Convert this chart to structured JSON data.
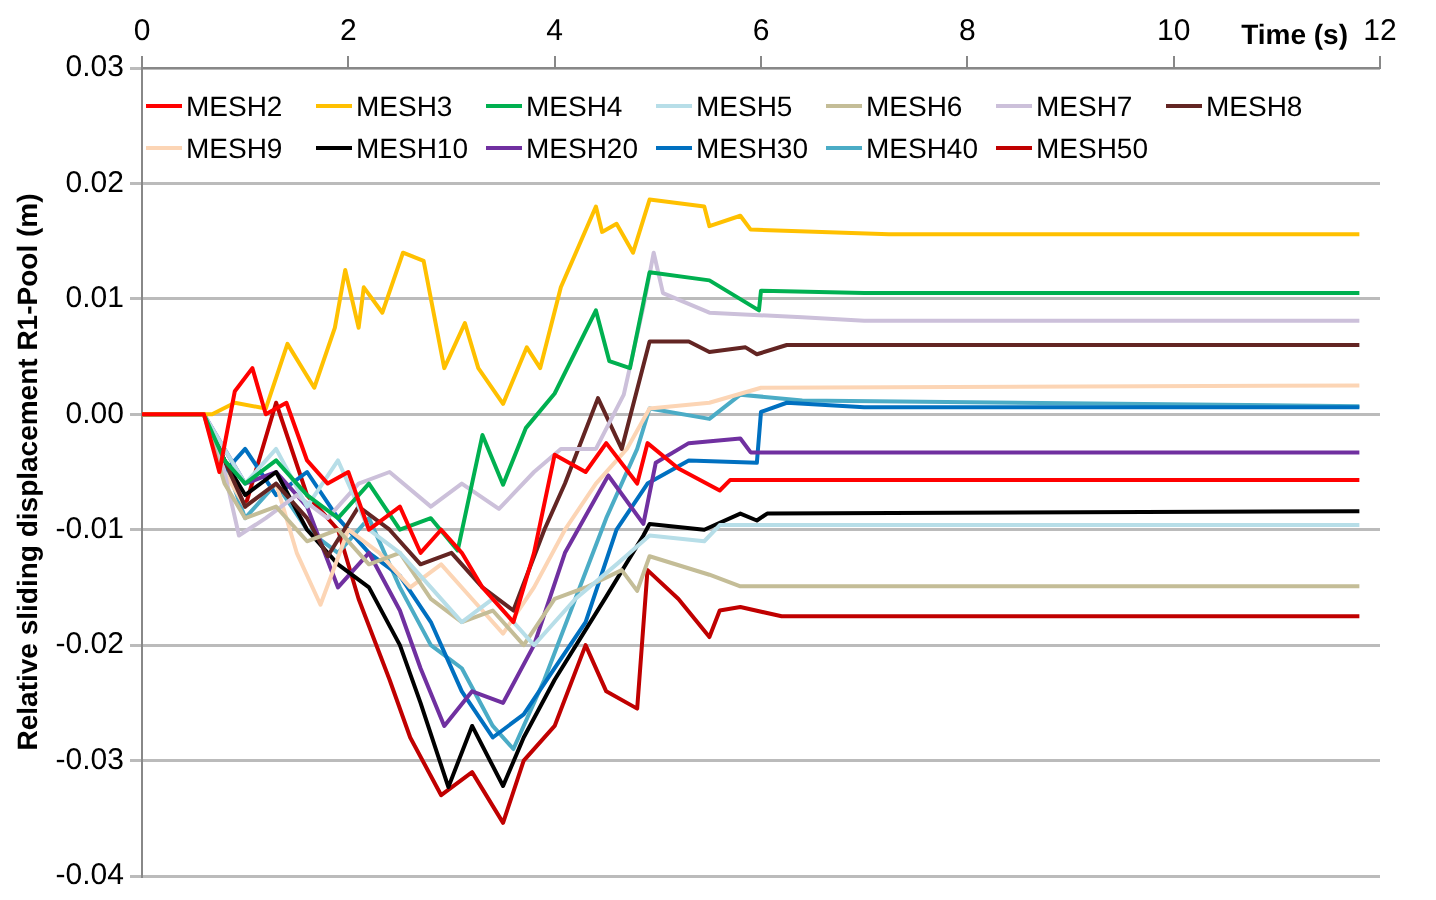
{
  "chart_data": {
    "type": "line",
    "xlabel": "Time (s)",
    "ylabel": "Relative sliding displacement R1-Pool (m)",
    "xlim": [
      0,
      12
    ],
    "xticks": [
      0,
      2,
      4,
      6,
      8,
      10,
      12
    ],
    "ylim": [
      -0.04,
      0.03
    ],
    "yticks": [
      -0.04,
      -0.03,
      -0.02,
      -0.01,
      {
        "value": 0,
        "label": "0.00"
      },
      0.01,
      0.02,
      0.03
    ],
    "grid": "y",
    "legend": "top",
    "marker": "none",
    "line_style": "solid",
    "series": [
      {
        "name": "MESH2",
        "color": "#ff0000",
        "x": [
          0,
          0.6,
          0.75,
          0.9,
          1.07,
          1.2,
          1.4,
          1.6,
          1.8,
          2.0,
          2.2,
          2.5,
          2.7,
          2.9,
          3.1,
          3.3,
          3.6,
          3.8,
          4.0,
          4.3,
          4.5,
          4.8,
          4.9,
          5.2,
          5.6,
          5.7,
          6.5,
          11.8
        ],
        "values": [
          0,
          0,
          -0.005,
          0.002,
          0.004,
          0,
          0.001,
          -0.004,
          -0.006,
          -0.005,
          -0.01,
          -0.008,
          -0.012,
          -0.01,
          -0.012,
          -0.015,
          -0.018,
          -0.012,
          -0.0035,
          -0.005,
          -0.0025,
          -0.006,
          -0.0025,
          -0.0047,
          -0.0066,
          -0.0057,
          -0.0057,
          -0.0057
        ]
      },
      {
        "name": "MESH3",
        "color": "#ffc000",
        "x": [
          0,
          0.6,
          0.68,
          0.9,
          1.2,
          1.41,
          1.67,
          1.87,
          1.97,
          2.1,
          2.15,
          2.33,
          2.53,
          2.73,
          2.93,
          3.13,
          3.26,
          3.5,
          3.73,
          3.86,
          4.06,
          4.4,
          4.46,
          4.6,
          4.76,
          4.92,
          5.45,
          5.5,
          5.8,
          5.9,
          7.24,
          11.8
        ],
        "values": [
          0,
          0,
          0,
          0.001,
          0.0005,
          0.0061,
          0.0023,
          0.0075,
          0.0125,
          0.0075,
          0.011,
          0.0088,
          0.014,
          0.0133,
          0.004,
          0.0079,
          0.004,
          0.0009,
          0.0058,
          0.004,
          0.011,
          0.018,
          0.0158,
          0.0165,
          0.014,
          0.0186,
          0.018,
          0.0163,
          0.0172,
          0.016,
          0.0156,
          0.0156
        ]
      },
      {
        "name": "MESH4",
        "color": "#00b050",
        "x": [
          0,
          0.6,
          0.8,
          1.0,
          1.3,
          1.6,
          1.9,
          2.2,
          2.5,
          2.8,
          3.06,
          3.3,
          3.5,
          3.72,
          4.0,
          4.4,
          4.53,
          4.73,
          4.92,
          5.5,
          5.98,
          6.0,
          7.0,
          11.8
        ],
        "values": [
          0,
          0,
          -0.004,
          -0.006,
          -0.004,
          -0.007,
          -0.009,
          -0.006,
          -0.01,
          -0.009,
          -0.0118,
          -0.0018,
          -0.0061,
          -0.0012,
          0.0018,
          0.009,
          0.0046,
          0.004,
          0.0123,
          0.0116,
          0.009,
          0.0107,
          0.0105,
          0.0105
        ]
      },
      {
        "name": "MESH5",
        "color": "#b7dee8",
        "x": [
          0,
          0.6,
          0.8,
          1.0,
          1.3,
          1.6,
          1.9,
          2.2,
          2.5,
          2.8,
          3.1,
          3.4,
          3.8,
          4.2,
          4.6,
          4.92,
          5.45,
          5.6,
          6.5,
          11.8
        ],
        "values": [
          0,
          0,
          -0.003,
          -0.006,
          -0.003,
          -0.008,
          -0.004,
          -0.01,
          -0.012,
          -0.015,
          -0.018,
          -0.016,
          -0.02,
          -0.016,
          -0.013,
          -0.0105,
          -0.011,
          -0.0096,
          -0.0096,
          -0.0096
        ]
      },
      {
        "name": "MESH6",
        "color": "#c4bd97",
        "x": [
          0,
          0.6,
          0.8,
          1.0,
          1.3,
          1.6,
          1.9,
          2.2,
          2.5,
          2.8,
          3.1,
          3.4,
          3.7,
          4.0,
          4.3,
          4.65,
          4.8,
          4.92,
          5.5,
          5.8,
          6.5,
          11.8
        ],
        "values": [
          0,
          0,
          -0.006,
          -0.009,
          -0.008,
          -0.011,
          -0.01,
          -0.013,
          -0.012,
          -0.016,
          -0.018,
          -0.017,
          -0.02,
          -0.016,
          -0.015,
          -0.0135,
          -0.0153,
          -0.0123,
          -0.0139,
          -0.0149,
          -0.0149,
          -0.0149
        ]
      },
      {
        "name": "MESH7",
        "color": "#ccc0da",
        "x": [
          0,
          0.6,
          0.8,
          0.94,
          1.2,
          1.5,
          1.8,
          2.1,
          2.4,
          2.8,
          3.1,
          3.46,
          3.8,
          4.06,
          4.4,
          4.67,
          4.86,
          4.96,
          5.05,
          5.5,
          6.4,
          7.0,
          11.8
        ],
        "values": [
          0,
          0,
          -0.005,
          -0.0105,
          -0.009,
          -0.007,
          -0.009,
          -0.006,
          -0.005,
          -0.008,
          -0.006,
          -0.0082,
          -0.005,
          -0.003,
          -0.003,
          0.0017,
          0.0093,
          0.014,
          0.0105,
          0.0088,
          0.0084,
          0.0081,
          0.0081
        ]
      },
      {
        "name": "MESH8",
        "color": "#632523",
        "x": [
          0,
          0.6,
          0.8,
          1.0,
          1.3,
          1.6,
          1.8,
          2.1,
          2.4,
          2.7,
          3.0,
          3.3,
          3.6,
          3.9,
          4.1,
          4.42,
          4.65,
          4.92,
          5.3,
          5.5,
          5.85,
          5.96,
          6.25,
          11.8
        ],
        "values": [
          0,
          0,
          -0.004,
          -0.008,
          -0.006,
          -0.009,
          -0.0123,
          -0.008,
          -0.01,
          -0.013,
          -0.012,
          -0.015,
          -0.017,
          -0.01,
          -0.006,
          0.0014,
          -0.003,
          0.0063,
          0.0063,
          0.0054,
          0.0058,
          0.0052,
          0.006,
          0.006
        ]
      },
      {
        "name": "MESH9",
        "color": "#fcd5b5",
        "x": [
          0,
          0.6,
          0.8,
          1.0,
          1.3,
          1.5,
          1.73,
          2.0,
          2.3,
          2.6,
          2.9,
          3.2,
          3.5,
          3.8,
          4.1,
          4.4,
          4.7,
          4.92,
          5.5,
          6.0,
          11.8
        ],
        "values": [
          0,
          0,
          -0.005,
          -0.008,
          -0.006,
          -0.012,
          -0.0165,
          -0.01,
          -0.012,
          -0.015,
          -0.013,
          -0.016,
          -0.019,
          -0.015,
          -0.01,
          -0.006,
          -0.003,
          0.0005,
          0.001,
          0.0023,
          0.0025
        ]
      },
      {
        "name": "MESH10",
        "color": "#000000",
        "x": [
          0,
          0.6,
          0.8,
          1.0,
          1.3,
          1.6,
          1.9,
          2.2,
          2.5,
          2.7,
          2.97,
          3.2,
          3.5,
          3.7,
          4.0,
          4.5,
          4.86,
          4.92,
          5.45,
          5.8,
          5.96,
          6.06,
          11.8
        ],
        "values": [
          0,
          0,
          -0.004,
          -0.007,
          -0.005,
          -0.01,
          -0.013,
          -0.015,
          -0.02,
          -0.025,
          -0.0323,
          -0.027,
          -0.0322,
          -0.028,
          -0.023,
          -0.0158,
          -0.0105,
          -0.0095,
          -0.01,
          -0.0086,
          -0.0092,
          -0.0086,
          -0.0084
        ]
      },
      {
        "name": "MESH20",
        "color": "#7030a0",
        "x": [
          0,
          0.6,
          0.8,
          1.0,
          1.3,
          1.6,
          1.9,
          2.2,
          2.5,
          2.7,
          2.93,
          3.2,
          3.5,
          3.8,
          4.1,
          4.52,
          4.86,
          4.98,
          5.3,
          5.8,
          5.9,
          11.8
        ],
        "values": [
          0,
          0,
          -0.003,
          -0.006,
          -0.005,
          -0.008,
          -0.015,
          -0.012,
          -0.017,
          -0.022,
          -0.027,
          -0.024,
          -0.025,
          -0.02,
          -0.012,
          -0.0053,
          -0.0095,
          -0.0042,
          -0.0025,
          -0.0021,
          -0.0033,
          -0.0033
        ]
      },
      {
        "name": "MESH30",
        "color": "#0070c0",
        "x": [
          0,
          0.6,
          0.8,
          1.0,
          1.3,
          1.6,
          1.9,
          2.2,
          2.5,
          2.8,
          3.1,
          3.4,
          3.7,
          4.0,
          4.3,
          4.6,
          4.9,
          5.3,
          5.96,
          6.0,
          6.25,
          7.0,
          11.8
        ],
        "values": [
          0,
          0,
          -0.005,
          -0.003,
          -0.007,
          -0.005,
          -0.009,
          -0.012,
          -0.014,
          -0.018,
          -0.024,
          -0.028,
          -0.026,
          -0.022,
          -0.018,
          -0.01,
          -0.006,
          -0.004,
          -0.0042,
          0.0002,
          0.001,
          0.0006,
          0.0006
        ]
      },
      {
        "name": "MESH40",
        "color": "#4bacc6",
        "x": [
          0,
          0.6,
          0.8,
          1.0,
          1.3,
          1.6,
          1.9,
          2.2,
          2.5,
          2.8,
          3.1,
          3.4,
          3.6,
          3.9,
          4.2,
          4.5,
          4.8,
          4.92,
          5.5,
          5.8,
          6.4,
          11.8
        ],
        "values": [
          0,
          0,
          -0.004,
          -0.009,
          -0.006,
          -0.01,
          -0.012,
          -0.009,
          -0.015,
          -0.02,
          -0.022,
          -0.027,
          -0.029,
          -0.023,
          -0.016,
          -0.009,
          -0.003,
          0.0005,
          -0.0004,
          0.0017,
          0.0012,
          0.0007
        ]
      },
      {
        "name": "MESH50",
        "color": "#c00000",
        "x": [
          0,
          0.6,
          0.8,
          1.0,
          1.3,
          1.6,
          1.9,
          2.1,
          2.4,
          2.6,
          2.9,
          3.2,
          3.5,
          3.7,
          4.0,
          4.3,
          4.5,
          4.8,
          4.9,
          5.2,
          5.5,
          5.6,
          5.8,
          6.2,
          11.8
        ],
        "values": [
          0,
          0,
          -0.004,
          -0.008,
          0.001,
          -0.007,
          -0.01,
          -0.016,
          -0.023,
          -0.028,
          -0.033,
          -0.031,
          -0.0354,
          -0.03,
          -0.027,
          -0.02,
          -0.024,
          -0.0255,
          -0.0135,
          -0.016,
          -0.0193,
          -0.017,
          -0.0167,
          -0.0175,
          -0.0175
        ]
      }
    ]
  }
}
